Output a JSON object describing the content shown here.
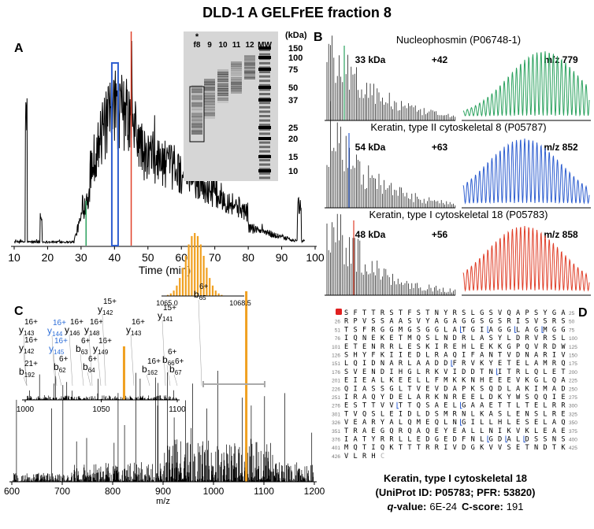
{
  "title": "DLD-1 A GELFrEE fraction 8",
  "panel_a": {
    "label": "A",
    "x_ticks": [
      "10",
      "20",
      "30",
      "40",
      "50",
      "60",
      "70",
      "80",
      "90",
      "100"
    ],
    "x_label": "Time (min)",
    "gel": {
      "star": "*",
      "lanes": [
        "f8",
        "9",
        "10",
        "11",
        "12",
        "MW"
      ],
      "unit": "(kDa)",
      "markers": [
        "150",
        "100",
        "75",
        "50",
        "37",
        "25",
        "20",
        "15",
        "10"
      ]
    }
  },
  "panel_b": {
    "label": "B",
    "proteins": [
      {
        "name": "Nucleophosmin (P06748-1)",
        "mass": "33 kDa",
        "charge": "+42",
        "mz": "m/z 779",
        "color": "#2ca25f"
      },
      {
        "name": "Keratin, type II cytoskeletal 8 (P05787)",
        "mass": "54 kDa",
        "charge": "+63",
        "mz": "m/z 852",
        "color": "#2f5fd0"
      },
      {
        "name": "Keratin, type I cytoskeletal 18 (P05783)",
        "mass": "48 kDa",
        "charge": "+56",
        "mz": "m/z 858",
        "color": "#e0402a"
      }
    ]
  },
  "panel_c": {
    "label": "C",
    "x_ticks": [
      "600",
      "700",
      "800",
      "900",
      "1000",
      "1100",
      "1200"
    ],
    "x_label": "m/z",
    "inset_ticks": [
      "1000",
      "1050",
      "1100"
    ],
    "zoom_ticks": [
      "1065.0",
      "1068.5"
    ],
    "fragments": [
      {
        "ion": "y",
        "num": "143",
        "charge": "16+",
        "color": "#000000"
      },
      {
        "ion": "y",
        "num": "142",
        "charge": "16+",
        "color": "#000000"
      },
      {
        "ion": "b",
        "num": "192",
        "charge": "21+",
        "color": "#000000"
      },
      {
        "ion": "y",
        "num": "144",
        "charge": "16+",
        "color": "#2f6fd8"
      },
      {
        "ion": "y",
        "num": "145",
        "charge": "16+",
        "color": "#2f6fd8"
      },
      {
        "ion": "y",
        "num": "146",
        "charge": "16+",
        "color": "#000000"
      },
      {
        "ion": "y",
        "num": "148",
        "charge": "16+",
        "color": "#000000"
      },
      {
        "ion": "b",
        "num": "63",
        "charge": "6+",
        "color": "#000000"
      },
      {
        "ion": "y",
        "num": "149",
        "charge": "16+",
        "color": "#000000"
      },
      {
        "ion": "b",
        "num": "62",
        "charge": "6+",
        "color": "#000000"
      },
      {
        "ion": "b",
        "num": "64",
        "charge": "6+",
        "color": "#000000"
      },
      {
        "ion": "y",
        "num": "142",
        "charge": "15+",
        "color": "#000000"
      },
      {
        "ion": "y",
        "num": "143",
        "charge": "16+",
        "color": "#000000"
      },
      {
        "ion": "y",
        "num": "141",
        "charge": "15+",
        "color": "#000000"
      },
      {
        "ion": "b",
        "num": "65",
        "charge": "6+",
        "color": "#000000"
      },
      {
        "ion": "b",
        "num": "66",
        "charge": "6+",
        "color": "#000000"
      },
      {
        "ion": "b",
        "num": "162",
        "charge": "16+",
        "color": "#000000"
      },
      {
        "ion": "b",
        "num": "67",
        "charge": "6+",
        "color": "#000000"
      }
    ]
  },
  "panel_d": {
    "label": "D",
    "rows": [
      {
        "start": "1",
        "seq": "SFTTRSTFSTNYRSLGSVQAPSYGA",
        "end": "25"
      },
      {
        "start": "26",
        "seq": "RPVSSAASVYAGAGGSGSRISVSRS",
        "end": "50"
      },
      {
        "start": "51",
        "seq": "TSFRGGMGSGGLATGIAGGLAGMGG",
        "end": "75"
      },
      {
        "start": "76",
        "seq": "IQNEKETMQSLNDRLASYLDRVRSL",
        "end": "100"
      },
      {
        "start": "101",
        "seq": "ETENRRLESKIREHLEKKGPQVRDW",
        "end": "125"
      },
      {
        "start": "126",
        "seq": "SHYFKIIEDLRAQIFANTVDNARIV",
        "end": "150"
      },
      {
        "start": "151",
        "seq": "LQIDNARLAADDFRVKYETELAMRQ",
        "end": "175"
      },
      {
        "start": "176",
        "seq": "SVENDIHGLRKVIDDTNITRLQLET",
        "end": "200"
      },
      {
        "start": "201",
        "seq": "EIEALKEELLFMKKNHEEEVKGLQA",
        "end": "225"
      },
      {
        "start": "226",
        "seq": "QIASSGLTVEVDAPKSQDLAKIMAD",
        "end": "250"
      },
      {
        "start": "251",
        "seq": "IRAQYDELARKNREELDKYWSQQIE",
        "end": "275"
      },
      {
        "start": "276",
        "seq": "ESTTVVTTQSAELGAAETTLTELRR",
        "end": "300"
      },
      {
        "start": "301",
        "seq": "TVQSLEIDLDSMRNLKASLENSLRE",
        "end": "325"
      },
      {
        "start": "326",
        "seq": "VEARYALQMEQLNGILLHLESELAQ",
        "end": "350"
      },
      {
        "start": "351",
        "seq": "TRAEGQRQAQEYEALLNIKVKLEAE",
        "end": "375"
      },
      {
        "start": "376",
        "seq": "IATYRRLLEDGEDFNLGDALDSSNS",
        "end": "400"
      },
      {
        "start": "401",
        "seq": "MQTIQKTTTRRIVDGKVVSETNDTK",
        "end": "425"
      },
      {
        "start": "426",
        "seq": "VLRH",
        "end": ""
      }
    ],
    "tail": "C",
    "protein": "Keratin, type I cytoskeletal 18",
    "ids": "(UniProt ID: P05783; PFR: 53820)",
    "q_label": "q",
    "q_rest": "-value:",
    "q_value": "6E-24",
    "c_label": "C-score:",
    "c_value": "191"
  }
}
